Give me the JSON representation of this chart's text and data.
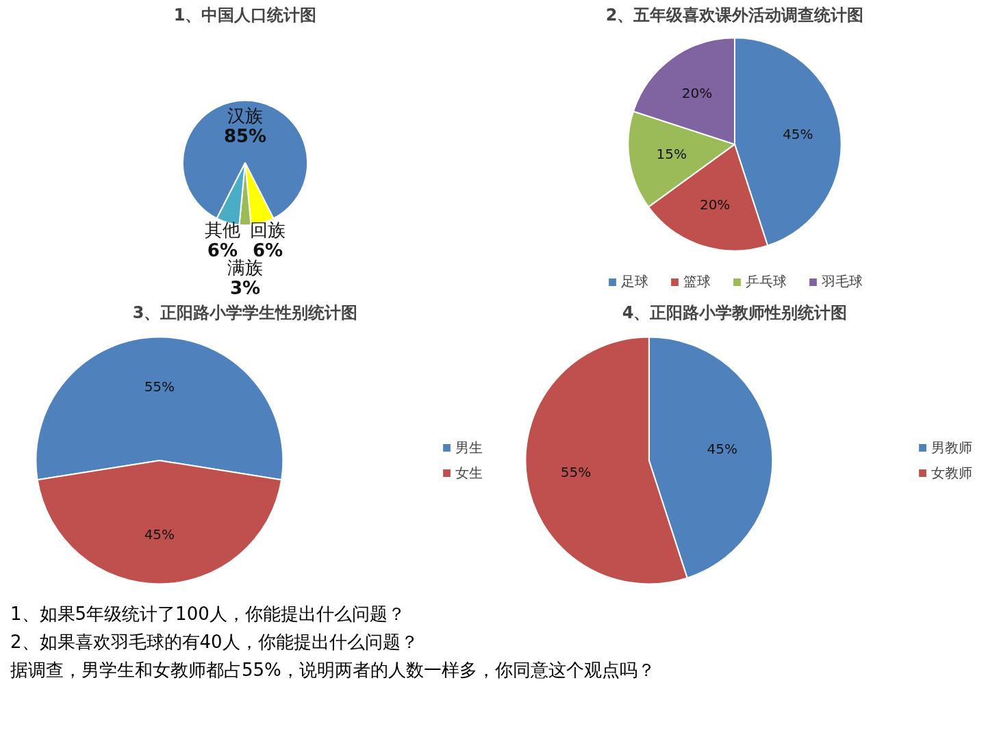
{
  "chart_data": [
    {
      "type": "pie",
      "title": "1、中国人口统计图",
      "categories": [
        "汉族",
        "回族",
        "满族",
        "其他"
      ],
      "values": [
        85,
        6,
        3,
        6
      ],
      "colors": [
        "#4f81bd",
        "#ffff00",
        "#9bbb59",
        "#4bacc6"
      ],
      "value_labels": [
        "85%",
        "6%",
        "3%",
        "6%"
      ]
    },
    {
      "type": "pie",
      "title": "2、五年级喜欢课外活动调查统计图",
      "categories": [
        "足球",
        "篮球",
        "乒乓球",
        "羽毛球"
      ],
      "values": [
        45,
        20,
        15,
        20
      ],
      "colors": [
        "#4f81bd",
        "#c0504d",
        "#9bbb59",
        "#8064a2"
      ],
      "value_labels": [
        "45%",
        "20%",
        "15%",
        "20%"
      ],
      "legend": "bottom"
    },
    {
      "type": "pie",
      "title": "3、正阳路小学学生性别统计图",
      "categories": [
        "男生",
        "女生"
      ],
      "values": [
        55,
        45
      ],
      "colors": [
        "#4f81bd",
        "#c0504d"
      ],
      "value_labels": [
        "55%",
        "45%"
      ],
      "legend": "right"
    },
    {
      "type": "pie",
      "title": "4、正阳路小学教师性别统计图",
      "categories": [
        "男教师",
        "女教师"
      ],
      "values": [
        45,
        55
      ],
      "colors": [
        "#4f81bd",
        "#c0504d"
      ],
      "value_labels": [
        "45%",
        "55%"
      ],
      "legend": "right",
      "annotations": [
        "1、如果5年级统计了100人，你能提出什么问题？",
        "2、如果喜欢羽毛球的有40人，你能提出什么问题？",
        "据调查，男学生和女教师都占55%，说明两者的人数一样多，你同意这个观点吗？"
      ]
    }
  ]
}
